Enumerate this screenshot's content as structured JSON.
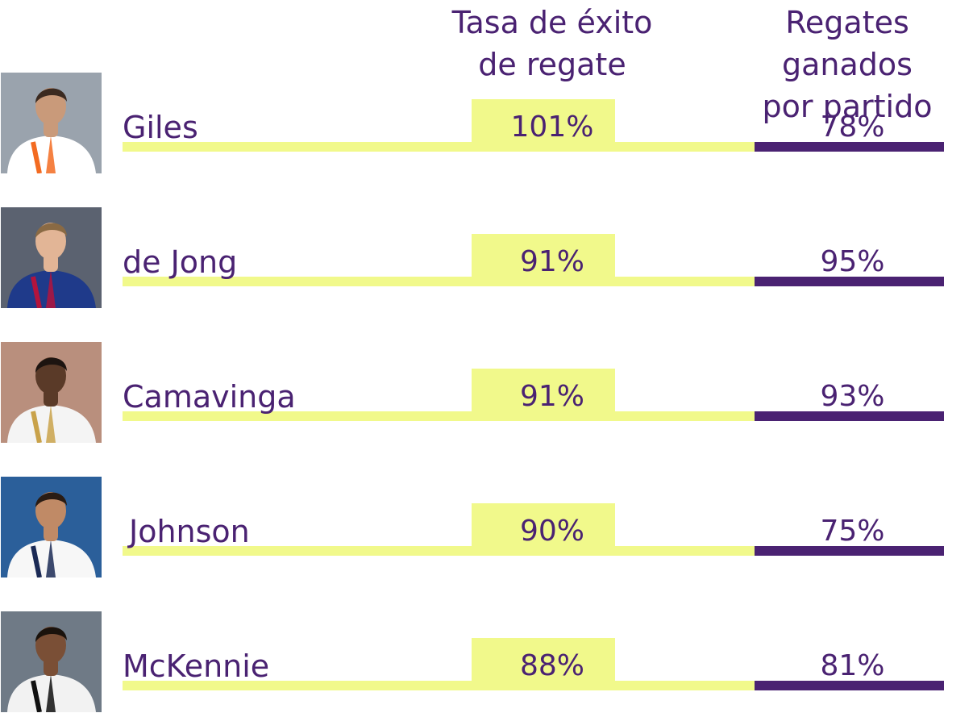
{
  "chart_data": {
    "type": "table",
    "columns": [
      "Tasa de éxito\nde regate",
      "Regates ganados\npor partido"
    ],
    "rows": [
      {
        "name": "Giles",
        "rate": "101%",
        "won": "78%"
      },
      {
        "name": "de Jong",
        "rate": "91%",
        "won": "95%"
      },
      {
        "name": "Camavinga",
        "rate": "91%",
        "won": "93%"
      },
      {
        "name": "Johnson",
        "rate": "90%",
        "won": "75%"
      },
      {
        "name": "McKennie",
        "rate": "88%",
        "won": "81%"
      }
    ],
    "colors": {
      "text": "#4a2272",
      "accent_yellow": "#f1f98b",
      "accent_purple": "#4a2272"
    }
  },
  "photos": [
    {
      "icon": "player-photo-giles",
      "shirt": "#ffffff",
      "trim": "#f36b21",
      "bg": "#9aa3ad",
      "skin": "#c99a7a",
      "hair": "#3b2a20"
    },
    {
      "icon": "player-photo-de-jong",
      "shirt": "#1f3a8a",
      "trim": "#b3143c",
      "bg": "#5b6270",
      "skin": "#e2b596",
      "hair": "#8a6a44"
    },
    {
      "icon": "player-photo-camavinga",
      "shirt": "#f4f4f4",
      "trim": "#c9a24a",
      "bg": "#b98f7d",
      "skin": "#5a3a28",
      "hair": "#1d1410"
    },
    {
      "icon": "player-photo-johnson",
      "shirt": "#f7f7f7",
      "trim": "#1b2a55",
      "bg": "#2b5f9a",
      "skin": "#c08a66",
      "hair": "#2a1c14"
    },
    {
      "icon": "player-photo-mckennie",
      "shirt": "#f2f2f2",
      "trim": "#111111",
      "bg": "#6f7a86",
      "skin": "#7a4f36",
      "hair": "#1a120c"
    }
  ]
}
